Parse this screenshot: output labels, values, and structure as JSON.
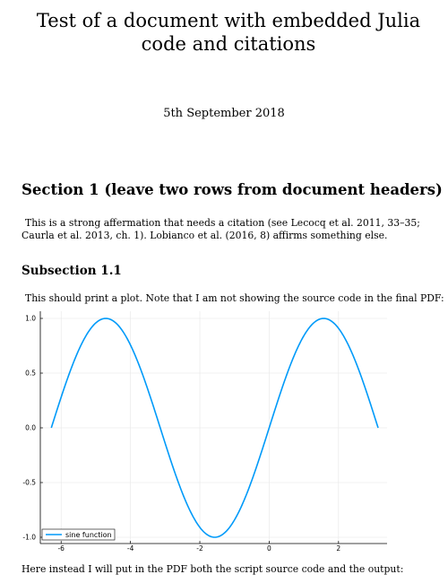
{
  "document": {
    "title": "Test of a document with embedded Julia code and citations",
    "date": "5th September 2018",
    "section_heading": "Section 1 (leave two rows from document headers)",
    "paragraph_1": "This is a strong affermation that needs a citation (see Lecocq et al. 2011, 33–35; Caurla et al. 2013, ch. 1). Lobianco et al. (2016, 8) affirms something else.",
    "subsection_heading": "Subsection 1.1",
    "paragraph_2": "This should print a plot. Note that I am not showing the source code in the final PDF:",
    "paragraph_3": "Here instead I will put in the PDF both the script source code and the output:"
  },
  "chart_data": {
    "type": "line",
    "function": "sin(x)",
    "x_range": [
      -6.283,
      3.142
    ],
    "xlim": [
      -6.6,
      3.4
    ],
    "ylim": [
      -1.0,
      1.0
    ],
    "x_ticks": [
      -6,
      -4,
      -2,
      0,
      2
    ],
    "x_tick_labels": [
      "-6",
      "-4",
      "-2",
      "0",
      "2"
    ],
    "y_ticks": [
      -1.0,
      -0.5,
      0.0,
      0.5,
      1.0
    ],
    "y_tick_labels": [
      "-1.0",
      "-0.5",
      "0.0",
      "0.5",
      "1.0"
    ],
    "grid": true,
    "legend_position": "bottom-left",
    "series": [
      {
        "name": "sine function",
        "color": "#009af9"
      }
    ]
  }
}
